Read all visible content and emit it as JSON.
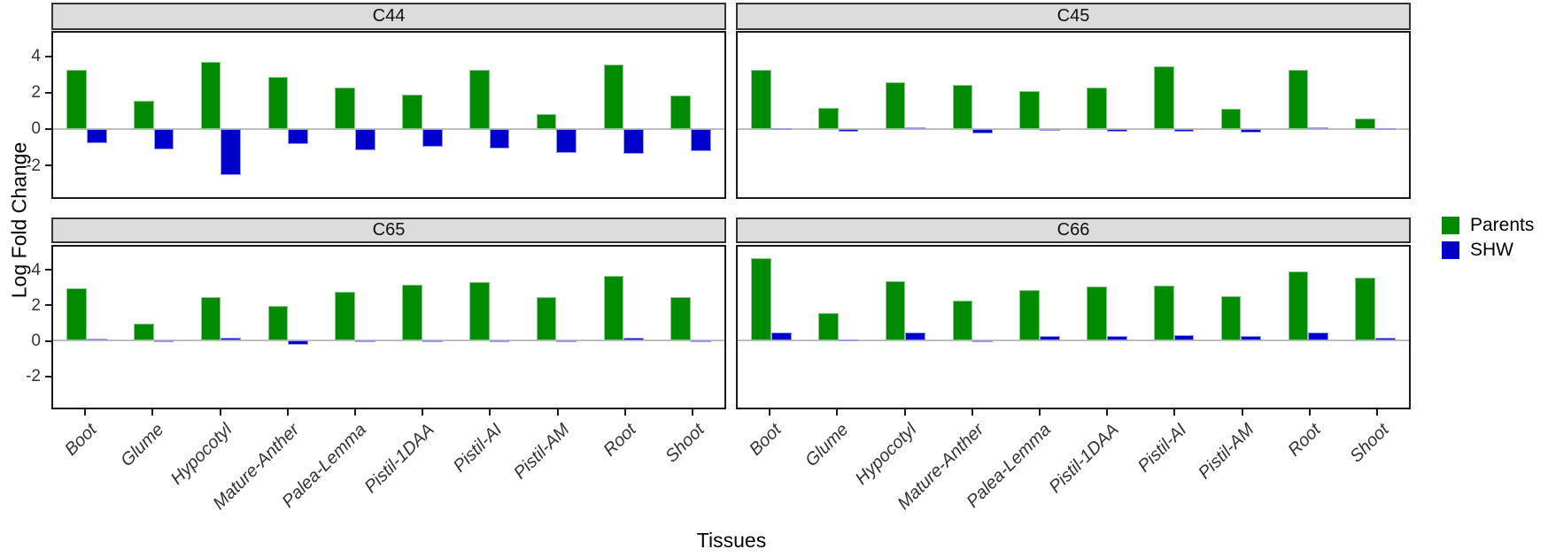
{
  "figure": {
    "ylabel": "Log Fold Change",
    "xlabel": "Tissues"
  },
  "legend": {
    "items": [
      {
        "label": "Parents",
        "color": "#008B00"
      },
      {
        "label": "SHW",
        "color": "#0000CD"
      }
    ]
  },
  "chart_data": {
    "type": "bar",
    "layout": "2x2-facet-grid",
    "facets": [
      "C44",
      "C45",
      "C65",
      "C66"
    ],
    "categories": [
      "Boot",
      "Glume",
      "Hypocotyl",
      "Mature-Anther",
      "Palea-Lemma",
      "Pistil-1DAA",
      "Pistil-AI",
      "Pistil-AM",
      "Root",
      "Shoot"
    ],
    "xlabel": "Tissues",
    "ylabel": "Log Fold Change",
    "yticks": [
      4,
      2,
      0,
      -2
    ],
    "ylim": [
      -3.85,
      5.4
    ],
    "grid": false,
    "legend_position": "right",
    "series": [
      {
        "name": "Parents",
        "color": "#008B00",
        "border_color": "#8CC98C",
        "facet_values": {
          "C44": [
            3.3,
            1.55,
            3.75,
            2.9,
            2.3,
            1.9,
            3.3,
            0.8,
            3.6,
            1.85
          ],
          "C45": [
            3.3,
            1.15,
            2.6,
            2.45,
            2.1,
            2.3,
            3.5,
            1.1,
            3.3,
            0.6
          ],
          "C65": [
            3.0,
            1.0,
            2.5,
            2.0,
            2.8,
            3.2,
            3.35,
            2.5,
            3.7,
            2.5
          ],
          "C66": [
            4.75,
            1.6,
            3.4,
            2.3,
            2.9,
            3.1,
            3.15,
            2.55,
            4.0,
            3.6
          ]
        }
      },
      {
        "name": "SHW",
        "color": "#0000CD",
        "border_color": "#9A9AE6",
        "facet_values": {
          "C44": [
            -0.8,
            -1.15,
            -2.6,
            -0.85,
            -1.2,
            -1.0,
            -1.1,
            -1.35,
            -1.4,
            -1.25
          ],
          "C45": [
            0.03,
            -0.15,
            0.08,
            -0.25,
            -0.03,
            -0.18,
            -0.18,
            -0.2,
            0.1,
            0.05
          ],
          "C65": [
            0.12,
            -0.07,
            0.17,
            -0.22,
            0.02,
            0.02,
            -0.06,
            0.03,
            0.15,
            -0.06
          ],
          "C66": [
            0.45,
            0.07,
            0.45,
            -0.08,
            0.25,
            0.28,
            0.3,
            0.27,
            0.45,
            0.15
          ]
        }
      }
    ],
    "zero_line_color": "#BEBEBE",
    "strip_bg": "#DCDCDC"
  }
}
